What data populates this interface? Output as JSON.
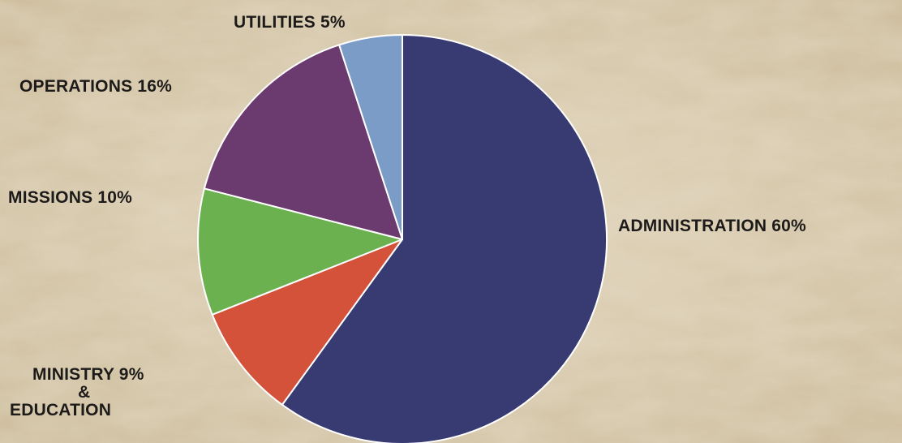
{
  "chart_data": {
    "type": "pie",
    "title": "",
    "start_angle_deg": 0,
    "direction": "clockwise",
    "slices": [
      {
        "label": "ADMINISTRATION 60%",
        "value": 60,
        "color": "#383a72"
      },
      {
        "label": "MINISTRY  9%",
        "label_line2": "&",
        "label_line3": "EDUCATION",
        "value": 9,
        "color": "#d4513a"
      },
      {
        "label": "MISSIONS 10%",
        "value": 10,
        "color": "#6cb150"
      },
      {
        "label": "OPERATIONS 16%",
        "value": 16,
        "color": "#6b3a6e"
      },
      {
        "label": "UTILITIES 5%",
        "value": 5,
        "color": "#7c9cc8"
      }
    ]
  },
  "background": {
    "texture": "parchment",
    "color": "#d9ccb2"
  }
}
